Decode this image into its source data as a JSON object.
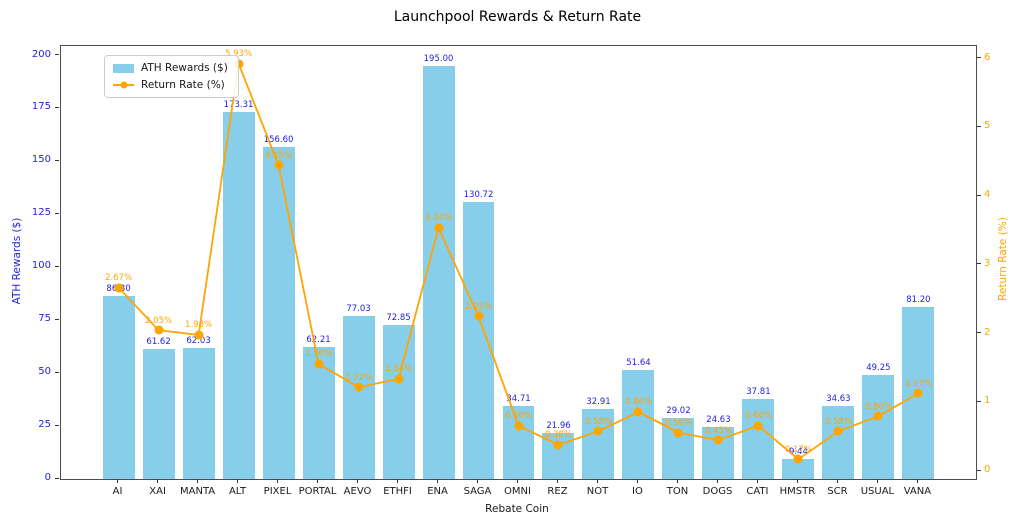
{
  "title": "Launchpool Rewards & Return Rate",
  "colors": {
    "bar": "#87CEEB",
    "line": "#FFA500",
    "left_axis_text": "#2222dd",
    "x_text": "#1a1a1a"
  },
  "legend": {
    "bar_label": "ATH Rewards ($)",
    "line_label": "Return Rate (%)"
  },
  "chart_data": {
    "type": "bar+line",
    "title": "Launchpool Rewards & Return Rate",
    "xlabel": "Rebate Coin",
    "ylabel_left": "ATH Rewards ($)",
    "ylabel_right": "Return Rate (%)",
    "categories": [
      "AI",
      "XAI",
      "MANTA",
      "ALT",
      "PIXEL",
      "PORTAL",
      "AEVO",
      "ETHFI",
      "ENA",
      "SAGA",
      "OMNI",
      "REZ",
      "NOT",
      "IO",
      "TON",
      "DOGS",
      "CATI",
      "HMSTR",
      "SCR",
      "USUAL",
      "VANA"
    ],
    "series": [
      {
        "name": "ATH Rewards ($)",
        "type": "bar",
        "axis": "left",
        "values": [
          86.3,
          61.62,
          62.03,
          173.31,
          156.6,
          62.21,
          77.03,
          72.85,
          195.0,
          130.72,
          34.71,
          21.96,
          32.91,
          51.64,
          29.02,
          24.63,
          37.81,
          9.44,
          34.63,
          49.25,
          81.2
        ],
        "labels": [
          "86.30",
          "61.62",
          "62.03",
          "173.31",
          "156.60",
          "62.21",
          "77.03",
          "72.85",
          "195.00",
          "130.72",
          "34.71",
          "21.96",
          "32.91",
          "51.64",
          "29.02",
          "24.63",
          "37.81",
          "9.44",
          "34.63",
          "49.25",
          "81.20"
        ]
      },
      {
        "name": "Return Rate (%)",
        "type": "line",
        "axis": "right",
        "values": [
          2.67,
          2.05,
          1.98,
          5.93,
          4.45,
          1.56,
          1.22,
          1.34,
          3.54,
          2.25,
          0.66,
          0.38,
          0.58,
          0.86,
          0.56,
          0.45,
          0.66,
          0.17,
          0.58,
          0.8,
          1.13
        ],
        "labels": [
          "2.67%",
          "2.05%",
          "1.98%",
          "5.93%",
          "4.45%",
          "1.56%",
          "1.22%",
          "1.34%",
          "3.54%",
          "2.25%",
          "0.66%",
          "0.38%",
          "0.58%",
          "0.86%",
          "0.56%",
          "0.45%",
          "0.66%",
          "0.17%",
          "0.58%",
          "0.80%",
          "1.13%"
        ]
      }
    ],
    "ylim_left": [
      0,
      204.5
    ],
    "ylim_right": [
      -0.116,
      6.186
    ],
    "xlim": [
      -1.44,
      21.44
    ],
    "left_ticks": [
      0,
      25,
      50,
      75,
      100,
      125,
      150,
      175,
      200
    ],
    "right_ticks": [
      0,
      1,
      2,
      3,
      4,
      5,
      6
    ],
    "legend_position": "upper-left",
    "grid": false,
    "bar_width_units": 0.8
  }
}
